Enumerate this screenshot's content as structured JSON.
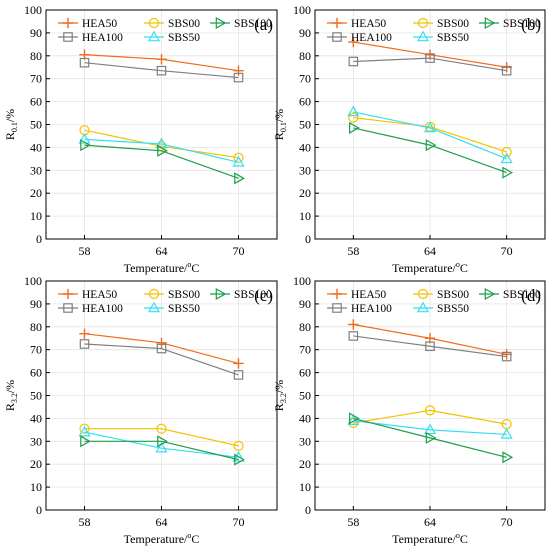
{
  "figure": {
    "colors": {
      "HEA50": "#F26B1D",
      "HEA100": "#7F7F7F",
      "SBS00": "#F2C200",
      "SBS50": "#33E0F2",
      "SBS100": "#1E9E4A"
    },
    "markers": {
      "HEA50": "plus",
      "HEA100": "square",
      "SBS00": "circle",
      "SBS50": "triangle-up",
      "SBS100": "triangle-right"
    }
  },
  "chart_data": [
    {
      "panel_label": "(a)",
      "type": "line",
      "x": [
        58,
        64,
        70
      ],
      "xlabel_main": "Temperature/",
      "xlabel_sup": "o",
      "xlabel_tail": "C",
      "ylabel_main": "R",
      "ylabel_sub": "0.1",
      "ylabel_tail": "/%",
      "ylim": [
        0,
        100
      ],
      "yticks": [
        0,
        10,
        20,
        30,
        40,
        50,
        60,
        70,
        80,
        90,
        100
      ],
      "xticks": [
        "58",
        "64",
        "70"
      ],
      "grid": true,
      "legend_placement": "top-left",
      "series": [
        {
          "name": "HEA50",
          "values": [
            80.5,
            78.5,
            73.5
          ]
        },
        {
          "name": "HEA100",
          "values": [
            77.0,
            73.5,
            70.5
          ]
        },
        {
          "name": "SBS00",
          "values": [
            47.5,
            40.5,
            35.5
          ]
        },
        {
          "name": "SBS50",
          "values": [
            43.5,
            41.5,
            33.5
          ]
        },
        {
          "name": "SBS100",
          "values": [
            41.0,
            38.5,
            26.5
          ]
        }
      ]
    },
    {
      "panel_label": "(b)",
      "type": "line",
      "x": [
        58,
        64,
        70
      ],
      "xlabel_main": "Temperature/",
      "xlabel_sup": "o",
      "xlabel_tail": "C",
      "ylabel_main": "R",
      "ylabel_sub": "0.1",
      "ylabel_tail": "/%",
      "ylim": [
        0,
        100
      ],
      "yticks": [
        0,
        10,
        20,
        30,
        40,
        50,
        60,
        70,
        80,
        90,
        100
      ],
      "xticks": [
        "58",
        "64",
        "70"
      ],
      "grid": true,
      "legend_placement": "top-left",
      "series": [
        {
          "name": "HEA50",
          "values": [
            86.0,
            80.5,
            75.0
          ]
        },
        {
          "name": "HEA100",
          "values": [
            77.5,
            79.0,
            73.5
          ]
        },
        {
          "name": "SBS00",
          "values": [
            53.0,
            49.0,
            38.0
          ]
        },
        {
          "name": "SBS50",
          "values": [
            55.5,
            48.5,
            35.0
          ]
        },
        {
          "name": "SBS100",
          "values": [
            48.5,
            41.0,
            29.0
          ]
        }
      ]
    },
    {
      "panel_label": "(c)",
      "type": "line",
      "x": [
        58,
        64,
        70
      ],
      "xlabel_main": "Temperature/",
      "xlabel_sup": "o",
      "xlabel_tail": "C",
      "ylabel_main": "R",
      "ylabel_sub": "3.2",
      "ylabel_tail": "/%",
      "ylim": [
        0,
        100
      ],
      "yticks": [
        0,
        10,
        20,
        30,
        40,
        50,
        60,
        70,
        80,
        90,
        100
      ],
      "xticks": [
        "58",
        "64",
        "70"
      ],
      "grid": true,
      "legend_placement": "top-left",
      "series": [
        {
          "name": "HEA50",
          "values": [
            77.0,
            73.0,
            64.0
          ]
        },
        {
          "name": "HEA100",
          "values": [
            72.5,
            70.5,
            59.0
          ]
        },
        {
          "name": "SBS00",
          "values": [
            35.5,
            35.5,
            28.0
          ]
        },
        {
          "name": "SBS50",
          "values": [
            34.0,
            27.0,
            23.0
          ]
        },
        {
          "name": "SBS100",
          "values": [
            30.0,
            30.0,
            22.0
          ]
        }
      ]
    },
    {
      "panel_label": "(d)",
      "type": "line",
      "x": [
        58,
        64,
        70
      ],
      "xlabel_main": "Temperature/",
      "xlabel_sup": "o",
      "xlabel_tail": "C",
      "ylabel_main": "R",
      "ylabel_sub": "3.2",
      "ylabel_tail": "/%",
      "ylim": [
        0,
        100
      ],
      "yticks": [
        0,
        10,
        20,
        30,
        40,
        50,
        60,
        70,
        80,
        90,
        100
      ],
      "xticks": [
        "58",
        "64",
        "70"
      ],
      "grid": true,
      "legend_placement": "top-left",
      "series": [
        {
          "name": "HEA50",
          "values": [
            81.0,
            75.0,
            68.0
          ]
        },
        {
          "name": "HEA100",
          "values": [
            76.0,
            71.5,
            67.0
          ]
        },
        {
          "name": "SBS00",
          "values": [
            38.0,
            43.5,
            37.5
          ]
        },
        {
          "name": "SBS50",
          "values": [
            39.0,
            35.0,
            33.0
          ]
        },
        {
          "name": "SBS100",
          "values": [
            40.0,
            31.5,
            23.0
          ]
        }
      ]
    }
  ]
}
